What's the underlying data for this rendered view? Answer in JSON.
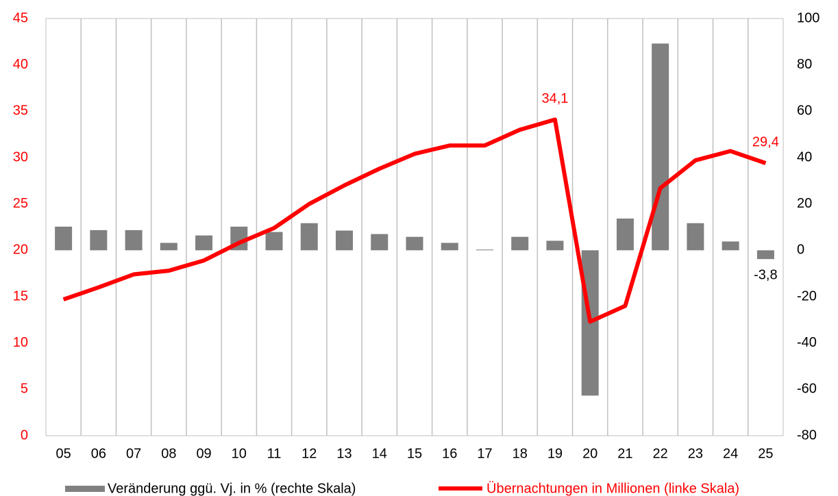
{
  "chart_data": {
    "type": "bar-line",
    "categories": [
      "05",
      "06",
      "07",
      "08",
      "09",
      "10",
      "11",
      "12",
      "13",
      "14",
      "15",
      "16",
      "17",
      "18",
      "19",
      "20",
      "21",
      "22",
      "23",
      "24",
      "25"
    ],
    "series": [
      {
        "name": "Veränderung ggü. Vj. in % (rechte Skala)",
        "type": "bar",
        "axis": "y2",
        "color": "#808080",
        "values": [
          10.2,
          8.7,
          8.7,
          3.2,
          6.4,
          10.2,
          7.9,
          11.7,
          8.5,
          7.0,
          5.8,
          3.2,
          0.3,
          5.8,
          4.1,
          -62.7,
          13.7,
          89.2,
          11.7,
          3.8,
          -3.8
        ],
        "value_labels": [
          null,
          null,
          null,
          null,
          null,
          null,
          null,
          null,
          null,
          null,
          null,
          null,
          null,
          null,
          null,
          null,
          null,
          null,
          null,
          null,
          "-3,8"
        ]
      },
      {
        "name": "Übernachtungen in Millionen (linke Skala)",
        "type": "line",
        "axis": "y",
        "color": "#ff0000",
        "values": [
          14.7,
          16.0,
          17.4,
          17.8,
          18.9,
          20.8,
          22.4,
          25.0,
          27.0,
          28.8,
          30.4,
          31.3,
          31.3,
          33.0,
          34.1,
          12.3,
          14.0,
          26.7,
          29.7,
          30.7,
          29.4
        ],
        "value_labels": [
          null,
          null,
          null,
          null,
          null,
          null,
          null,
          null,
          null,
          null,
          null,
          null,
          null,
          null,
          "34,1",
          null,
          null,
          null,
          null,
          null,
          "29,4"
        ]
      }
    ],
    "ylim": [
      0,
      45
    ],
    "yticks": [
      0,
      5,
      10,
      15,
      20,
      25,
      30,
      35,
      40,
      45
    ],
    "y2lim": [
      -80,
      100
    ],
    "y2ticks": [
      -80,
      -60,
      -40,
      -20,
      0,
      20,
      40,
      60,
      80,
      100
    ],
    "grid": "vertical",
    "legend": "bottom"
  }
}
